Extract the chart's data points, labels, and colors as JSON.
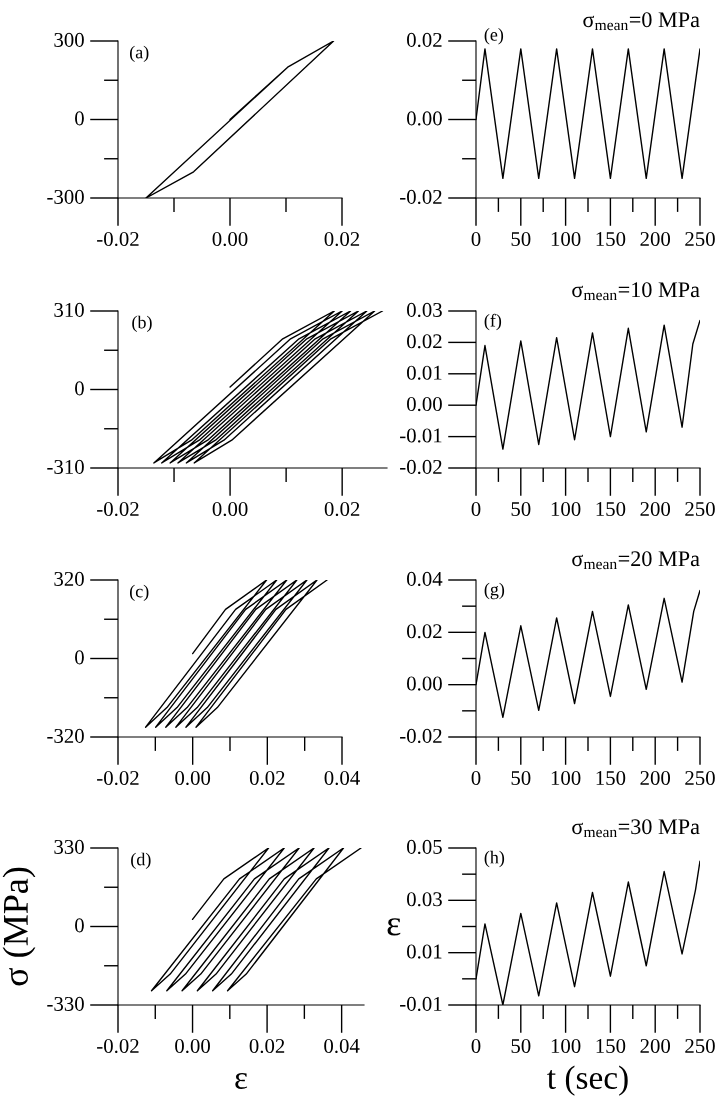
{
  "chart_data": [
    {
      "type": "line",
      "annotations": [
        "(a)"
      ],
      "color": "#000000",
      "xlim": [
        -0.02,
        0.02
      ],
      "ylim": [
        -300,
        300
      ],
      "xticks": [
        -0.02,
        {
          "value": -0.01,
          "label": null
        },
        {
          "value": 0,
          "label": "0.00"
        },
        {
          "value": 0.01,
          "label": null
        },
        0.02
      ],
      "yticks": [
        -300,
        {
          "value": -150,
          "label": null
        },
        0,
        {
          "value": 150,
          "label": null
        },
        300
      ],
      "x": [
        0,
        0.0103,
        0.0185,
        -0.0065,
        -0.015,
        0.0103,
        0.0185
      ],
      "values": [
        0,
        200,
        300,
        -200,
        -300,
        200,
        300
      ]
    },
    {
      "type": "line",
      "title": "σ$_{mean}$=0 MPa",
      "annotations": [
        "(e)"
      ],
      "color": "#000000",
      "xlim": [
        0,
        250
      ],
      "ylim": [
        -0.02,
        0.02
      ],
      "xticks": [
        0,
        {
          "value": 25,
          "label": null
        },
        50,
        {
          "value": 75,
          "label": null
        },
        100,
        {
          "value": 125,
          "label": null
        },
        150,
        {
          "value": 175,
          "label": null
        },
        200,
        {
          "value": 225,
          "label": null
        },
        250
      ],
      "yticks": [
        -0.02,
        {
          "value": -0.01,
          "label": null
        },
        {
          "value": 0,
          "label": "0.00"
        },
        {
          "value": 0.01,
          "label": null
        },
        0.02
      ],
      "x": [
        0,
        10,
        30,
        50,
        70,
        90,
        110,
        130,
        150,
        170,
        190,
        210,
        230,
        250
      ],
      "values": [
        0,
        0.018,
        -0.015,
        0.018,
        -0.015,
        0.018,
        -0.015,
        0.018,
        -0.015,
        0.018,
        -0.015,
        0.018,
        -0.015,
        0.018
      ]
    },
    {
      "type": "line",
      "annotations": [
        "(b)"
      ],
      "color": "#000000",
      "xlim": [
        -0.02,
        0.028
      ],
      "ylim": [
        -310,
        310
      ],
      "xticks": [
        -0.02,
        {
          "value": -0.01,
          "label": null
        },
        {
          "value": 0,
          "label": "0.00"
        },
        {
          "value": 0.01,
          "label": null
        },
        0.02
      ],
      "yticks": [
        -310,
        {
          "value": -155,
          "label": null
        },
        0,
        {
          "value": 155,
          "label": null
        },
        310
      ],
      "x": [
        0,
        0.0094,
        0.0186,
        -0.0069,
        -0.0136,
        0.0108,
        0.02,
        -0.0055,
        -0.0122,
        0.0123,
        0.0215,
        -0.004,
        -0.0107,
        0.0137,
        0.0229,
        -0.0026,
        -0.0093,
        0.0152,
        0.0244,
        -0.0011,
        -0.0078,
        0.0166,
        0.0258,
        0.0003,
        -0.0064,
        0.018,
        0.0272
      ],
      "values": [
        10,
        200,
        310,
        -200,
        -290,
        200,
        310,
        -200,
        -290,
        200,
        310,
        -200,
        -290,
        200,
        310,
        -200,
        -290,
        200,
        310,
        -200,
        -290,
        200,
        310,
        -200,
        -290,
        200,
        310
      ]
    },
    {
      "type": "line",
      "title": "σ$_{mean}$=10 MPa",
      "annotations": [
        "(f)"
      ],
      "color": "#000000",
      "xlim": [
        0,
        250
      ],
      "ylim": [
        -0.02,
        0.03
      ],
      "xticks": [
        0,
        {
          "value": 25,
          "label": null
        },
        50,
        {
          "value": 75,
          "label": null
        },
        100,
        {
          "value": 125,
          "label": null
        },
        150,
        {
          "value": 175,
          "label": null
        },
        200,
        {
          "value": 225,
          "label": null
        },
        250
      ],
      "yticks": [
        -0.02,
        -0.01,
        {
          "value": 0,
          "label": "0.00"
        },
        0.01,
        0.02,
        0.03
      ],
      "x": [
        0,
        10,
        30,
        50,
        70,
        90,
        110,
        130,
        150,
        170,
        190,
        210,
        230,
        242,
        250
      ],
      "values": [
        0,
        0.019,
        -0.014,
        0.0205,
        -0.0125,
        0.0215,
        -0.011,
        0.023,
        -0.01,
        0.0245,
        -0.0085,
        0.0255,
        -0.007,
        0.0195,
        0.027
      ]
    },
    {
      "type": "line",
      "annotations": [
        "(c)"
      ],
      "color": "#000000",
      "xlim": [
        -0.02,
        0.04
      ],
      "ylim": [
        -320,
        320
      ],
      "xticks": [
        -0.02,
        {
          "value": -0.01,
          "label": null
        },
        {
          "value": 0,
          "label": "0.00"
        },
        {
          "value": 0.01,
          "label": null
        },
        0.02,
        {
          "value": 0.03,
          "label": null
        },
        0.04
      ],
      "yticks": [
        -320,
        {
          "value": -160,
          "label": null
        },
        0,
        {
          "value": 160,
          "label": null
        },
        320
      ],
      "x": [
        0,
        0.0088,
        0.0198,
        -0.0069,
        -0.0126,
        0.0115,
        0.0225,
        -0.0042,
        -0.0099,
        0.0142,
        0.0252,
        -0.0015,
        -0.0072,
        0.0169,
        0.0279,
        0.0012,
        -0.0045,
        0.0196,
        0.0306,
        0.0039,
        -0.0018,
        0.0223,
        0.0333,
        0.0066,
        0.0009,
        0.025,
        0.036
      ],
      "values": [
        20,
        200,
        320,
        -200,
        -280,
        200,
        320,
        -200,
        -280,
        200,
        320,
        -200,
        -280,
        200,
        320,
        -200,
        -280,
        200,
        320,
        -200,
        -280,
        200,
        320,
        -200,
        -280,
        200,
        320
      ]
    },
    {
      "type": "line",
      "title": "σ$_{mean}$=20 MPa",
      "annotations": [
        "(g)"
      ],
      "color": "#000000",
      "xlim": [
        0,
        250
      ],
      "ylim": [
        -0.02,
        0.04
      ],
      "xticks": [
        0,
        {
          "value": 25,
          "label": null
        },
        50,
        {
          "value": 75,
          "label": null
        },
        100,
        {
          "value": 125,
          "label": null
        },
        150,
        {
          "value": 175,
          "label": null
        },
        200,
        {
          "value": 225,
          "label": null
        },
        250
      ],
      "yticks": [
        -0.02,
        {
          "value": -0.01,
          "label": null
        },
        {
          "value": 0,
          "label": "0.00"
        },
        {
          "value": 0.01,
          "label": null
        },
        0.02,
        {
          "value": 0.03,
          "label": null
        },
        0.04
      ],
      "x": [
        0,
        10,
        30,
        50,
        70,
        90,
        110,
        130,
        150,
        170,
        190,
        210,
        230,
        243,
        250
      ],
      "values": [
        0,
        0.02,
        -0.0125,
        0.0225,
        -0.0098,
        0.0255,
        -0.0072,
        0.028,
        -0.0045,
        0.0305,
        -0.0018,
        0.033,
        0.001,
        0.028,
        0.036
      ]
    },
    {
      "type": "line",
      "xlabel": "ε",
      "ylabel": "σ (MPa)",
      "annotations": [
        "(d)"
      ],
      "color": "#000000",
      "xlim": [
        -0.02,
        0.046
      ],
      "ylim": [
        -330,
        330
      ],
      "xticks": [
        -0.02,
        {
          "value": -0.01,
          "label": null
        },
        {
          "value": 0,
          "label": "0.00"
        },
        {
          "value": 0.01,
          "label": null
        },
        0.02,
        {
          "value": 0.03,
          "label": null
        },
        0.04
      ],
      "yticks": [
        -330,
        {
          "value": -165,
          "label": null
        },
        0,
        {
          "value": 165,
          "label": null
        },
        330
      ],
      "x": [
        0,
        0.0084,
        0.0204,
        -0.006,
        -0.011,
        0.0126,
        0.0246,
        -0.0019,
        -0.0069,
        0.0166,
        0.0286,
        0.0022,
        -0.0028,
        0.0206,
        0.0326,
        0.0063,
        0.0013,
        0.0246,
        0.0366,
        0.0104,
        0.0054,
        0.0285,
        0.0405,
        0.0144,
        0.0094,
        0.0332,
        0.0452
      ],
      "values": [
        30,
        200,
        330,
        -200,
        -270,
        200,
        330,
        -200,
        -270,
        200,
        330,
        -200,
        -270,
        200,
        330,
        -200,
        -270,
        200,
        330,
        -200,
        -270,
        200,
        330,
        -200,
        -270,
        200,
        330
      ]
    },
    {
      "type": "line",
      "title": "σ$_{mean}$=30 MPa",
      "xlabel": "t (sec)",
      "ylabel": "ε",
      "annotations": [
        "(h)"
      ],
      "color": "#000000",
      "xlim": [
        0,
        250
      ],
      "ylim": [
        -0.01,
        0.05
      ],
      "xticks": [
        0,
        {
          "value": 25,
          "label": null
        },
        50,
        {
          "value": 75,
          "label": null
        },
        100,
        {
          "value": 125,
          "label": null
        },
        150,
        {
          "value": 175,
          "label": null
        },
        200,
        {
          "value": 225,
          "label": null
        },
        250
      ],
      "yticks": [
        -0.01,
        {
          "value": 0,
          "label": null
        },
        0.01,
        {
          "value": 0.02,
          "label": null
        },
        0.03,
        {
          "value": 0.04,
          "label": null
        },
        0.05
      ],
      "x": [
        0,
        10,
        30,
        50,
        70,
        90,
        110,
        130,
        150,
        170,
        190,
        210,
        230,
        245,
        250
      ],
      "values": [
        0,
        0.021,
        -0.01,
        0.025,
        -0.0065,
        0.029,
        -0.003,
        0.033,
        0.001,
        0.037,
        0.005,
        0.041,
        0.0095,
        0.034,
        0.045
      ]
    }
  ]
}
